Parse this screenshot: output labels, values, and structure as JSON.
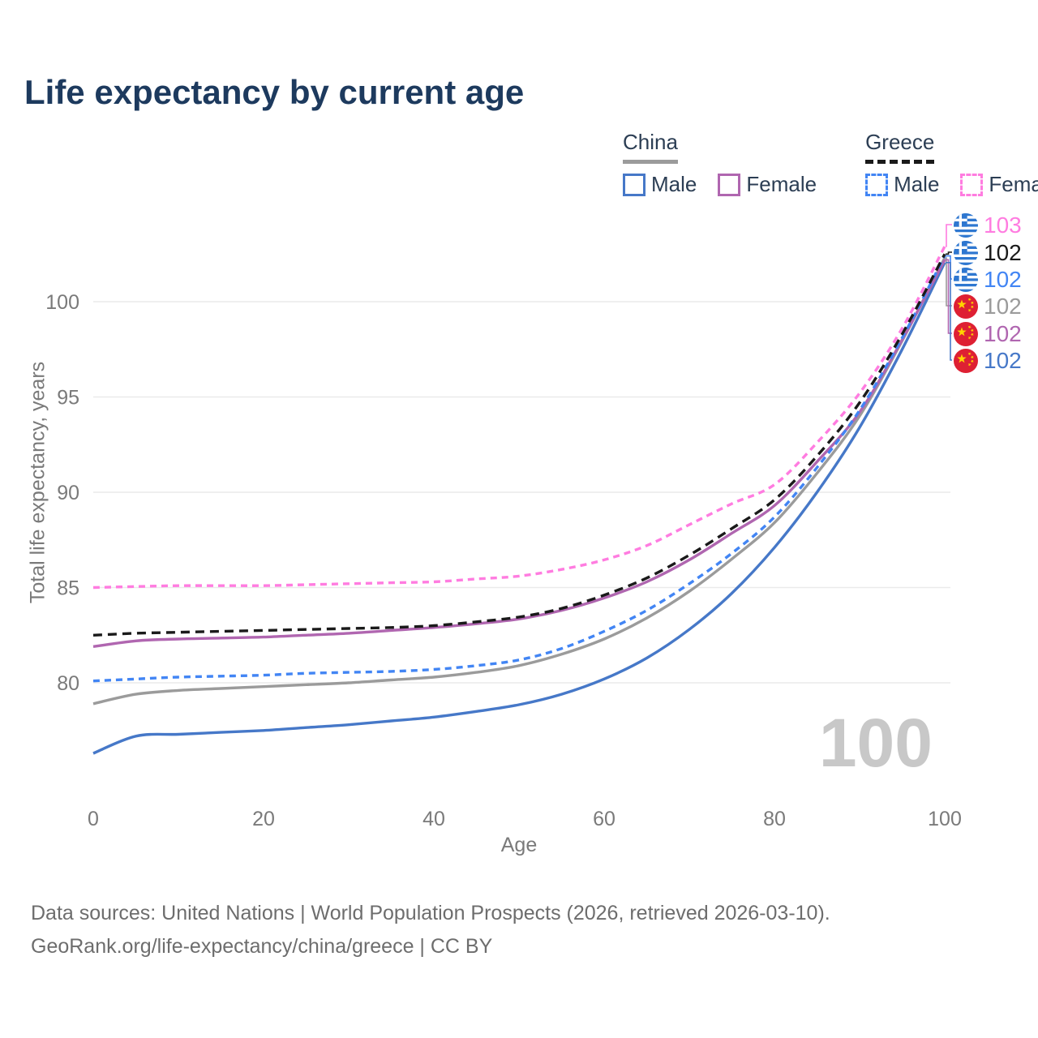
{
  "title": "Life expectancy by current age",
  "legend": {
    "groups": [
      {
        "country": "China",
        "line_style": "solid",
        "underline_color_key": "china_both",
        "items": [
          {
            "label": "Male",
            "color_key": "china_male"
          },
          {
            "label": "Female",
            "color_key": "china_female"
          }
        ]
      },
      {
        "country": "Greece",
        "line_style": "dashed",
        "underline_color_key": "greece_both",
        "items": [
          {
            "label": "Male",
            "color_key": "greece_male"
          },
          {
            "label": "Female",
            "color_key": "greece_female"
          }
        ]
      }
    ]
  },
  "colors": {
    "china_male": "#4678c8",
    "china_female": "#b066b0",
    "china_both": "#9b9b9b",
    "greece_male": "#4285f4",
    "greece_female": "#ff7ce0",
    "greece_both": "#1a1a1a",
    "title": "#1d3a5e",
    "axis_text": "#7a7a7a",
    "grid": "#eaeaea",
    "watermark": "#c8c8c8",
    "flag_greece_blue": "#2e77d0",
    "flag_china_red": "#de2033",
    "flag_china_yellow": "#ffd400"
  },
  "axes": {
    "y_title": "Total life expectancy, years",
    "x_title": "Age",
    "y_ticks": [
      100,
      95,
      90,
      85,
      80
    ],
    "x_ticks": [
      0,
      20,
      40,
      60,
      80,
      100
    ]
  },
  "watermark": "100",
  "end_labels": [
    {
      "country": "Greece",
      "sex": "Female",
      "flag": "greece",
      "value": "103",
      "color_key": "greece_female"
    },
    {
      "country": "Greece",
      "sex": "Both",
      "flag": "greece",
      "value": "102",
      "color_key": "greece_both"
    },
    {
      "country": "Greece",
      "sex": "Male",
      "flag": "greece",
      "value": "102",
      "color_key": "greece_male"
    },
    {
      "country": "China",
      "sex": "Both",
      "flag": "china",
      "value": "102",
      "color_key": "china_both"
    },
    {
      "country": "China",
      "sex": "Female",
      "flag": "china",
      "value": "102",
      "color_key": "china_female"
    },
    {
      "country": "China",
      "sex": "Male",
      "flag": "china",
      "value": "102",
      "color_key": "china_male"
    }
  ],
  "footer": {
    "line1": "Data sources: United Nations | World Population Prospects (2026, retrieved 2026-03-10).",
    "line2": "GeoRank.org/life-expectancy/china/greece | CC BY"
  },
  "chart_data": {
    "type": "line",
    "title": "Life expectancy by current age",
    "xlabel": "Age",
    "ylabel": "Total life expectancy, years",
    "xlim": [
      0,
      100
    ],
    "ylim": [
      76,
      103.5
    ],
    "grid": true,
    "legend_position": "top-right",
    "x": [
      0,
      5,
      10,
      15,
      20,
      25,
      30,
      35,
      40,
      45,
      50,
      55,
      60,
      65,
      70,
      75,
      80,
      85,
      90,
      95,
      100
    ],
    "series": [
      {
        "name": "China Male",
        "country": "China",
        "sex": "Male",
        "style": "solid",
        "color_key": "china_male",
        "values": [
          76.3,
          77.2,
          77.3,
          77.4,
          77.5,
          77.65,
          77.8,
          78.0,
          78.2,
          78.5,
          78.85,
          79.4,
          80.2,
          81.3,
          82.8,
          84.7,
          87.1,
          90.0,
          93.4,
          97.5,
          102.05
        ]
      },
      {
        "name": "China Both sexes",
        "country": "China",
        "sex": "Both",
        "style": "solid",
        "color_key": "china_both",
        "values": [
          78.9,
          79.4,
          79.6,
          79.7,
          79.8,
          79.9,
          80.0,
          80.15,
          80.3,
          80.55,
          80.9,
          81.5,
          82.3,
          83.4,
          84.8,
          86.5,
          88.4,
          91.0,
          94.0,
          97.95,
          102.3
        ]
      },
      {
        "name": "China Female",
        "country": "China",
        "sex": "Female",
        "style": "solid",
        "color_key": "china_female",
        "values": [
          81.9,
          82.2,
          82.3,
          82.35,
          82.4,
          82.5,
          82.6,
          82.75,
          82.9,
          83.1,
          83.35,
          83.8,
          84.45,
          85.3,
          86.45,
          87.85,
          89.3,
          91.6,
          94.2,
          98.0,
          102.2
        ]
      },
      {
        "name": "Greece Male",
        "country": "Greece",
        "sex": "Male",
        "style": "dashed",
        "color_key": "greece_male",
        "values": [
          80.1,
          80.2,
          80.3,
          80.35,
          80.4,
          80.5,
          80.55,
          80.6,
          80.7,
          80.9,
          81.2,
          81.8,
          82.7,
          83.8,
          85.2,
          86.8,
          88.7,
          91.3,
          94.3,
          98.1,
          102.4
        ]
      },
      {
        "name": "Greece Both sexes",
        "country": "Greece",
        "sex": "Both",
        "style": "dashed",
        "color_key": "greece_both",
        "values": [
          82.5,
          82.6,
          82.65,
          82.7,
          82.75,
          82.8,
          82.85,
          82.9,
          83.0,
          83.2,
          83.45,
          83.9,
          84.6,
          85.5,
          86.7,
          88.1,
          89.6,
          91.9,
          94.7,
          98.3,
          102.5
        ]
      },
      {
        "name": "Greece Female",
        "country": "Greece",
        "sex": "Female",
        "style": "dashed",
        "color_key": "greece_female",
        "values": [
          85.0,
          85.05,
          85.1,
          85.1,
          85.1,
          85.15,
          85.2,
          85.25,
          85.3,
          85.45,
          85.6,
          85.95,
          86.45,
          87.2,
          88.3,
          89.4,
          90.4,
          92.6,
          95.2,
          98.6,
          102.9
        ]
      }
    ]
  }
}
